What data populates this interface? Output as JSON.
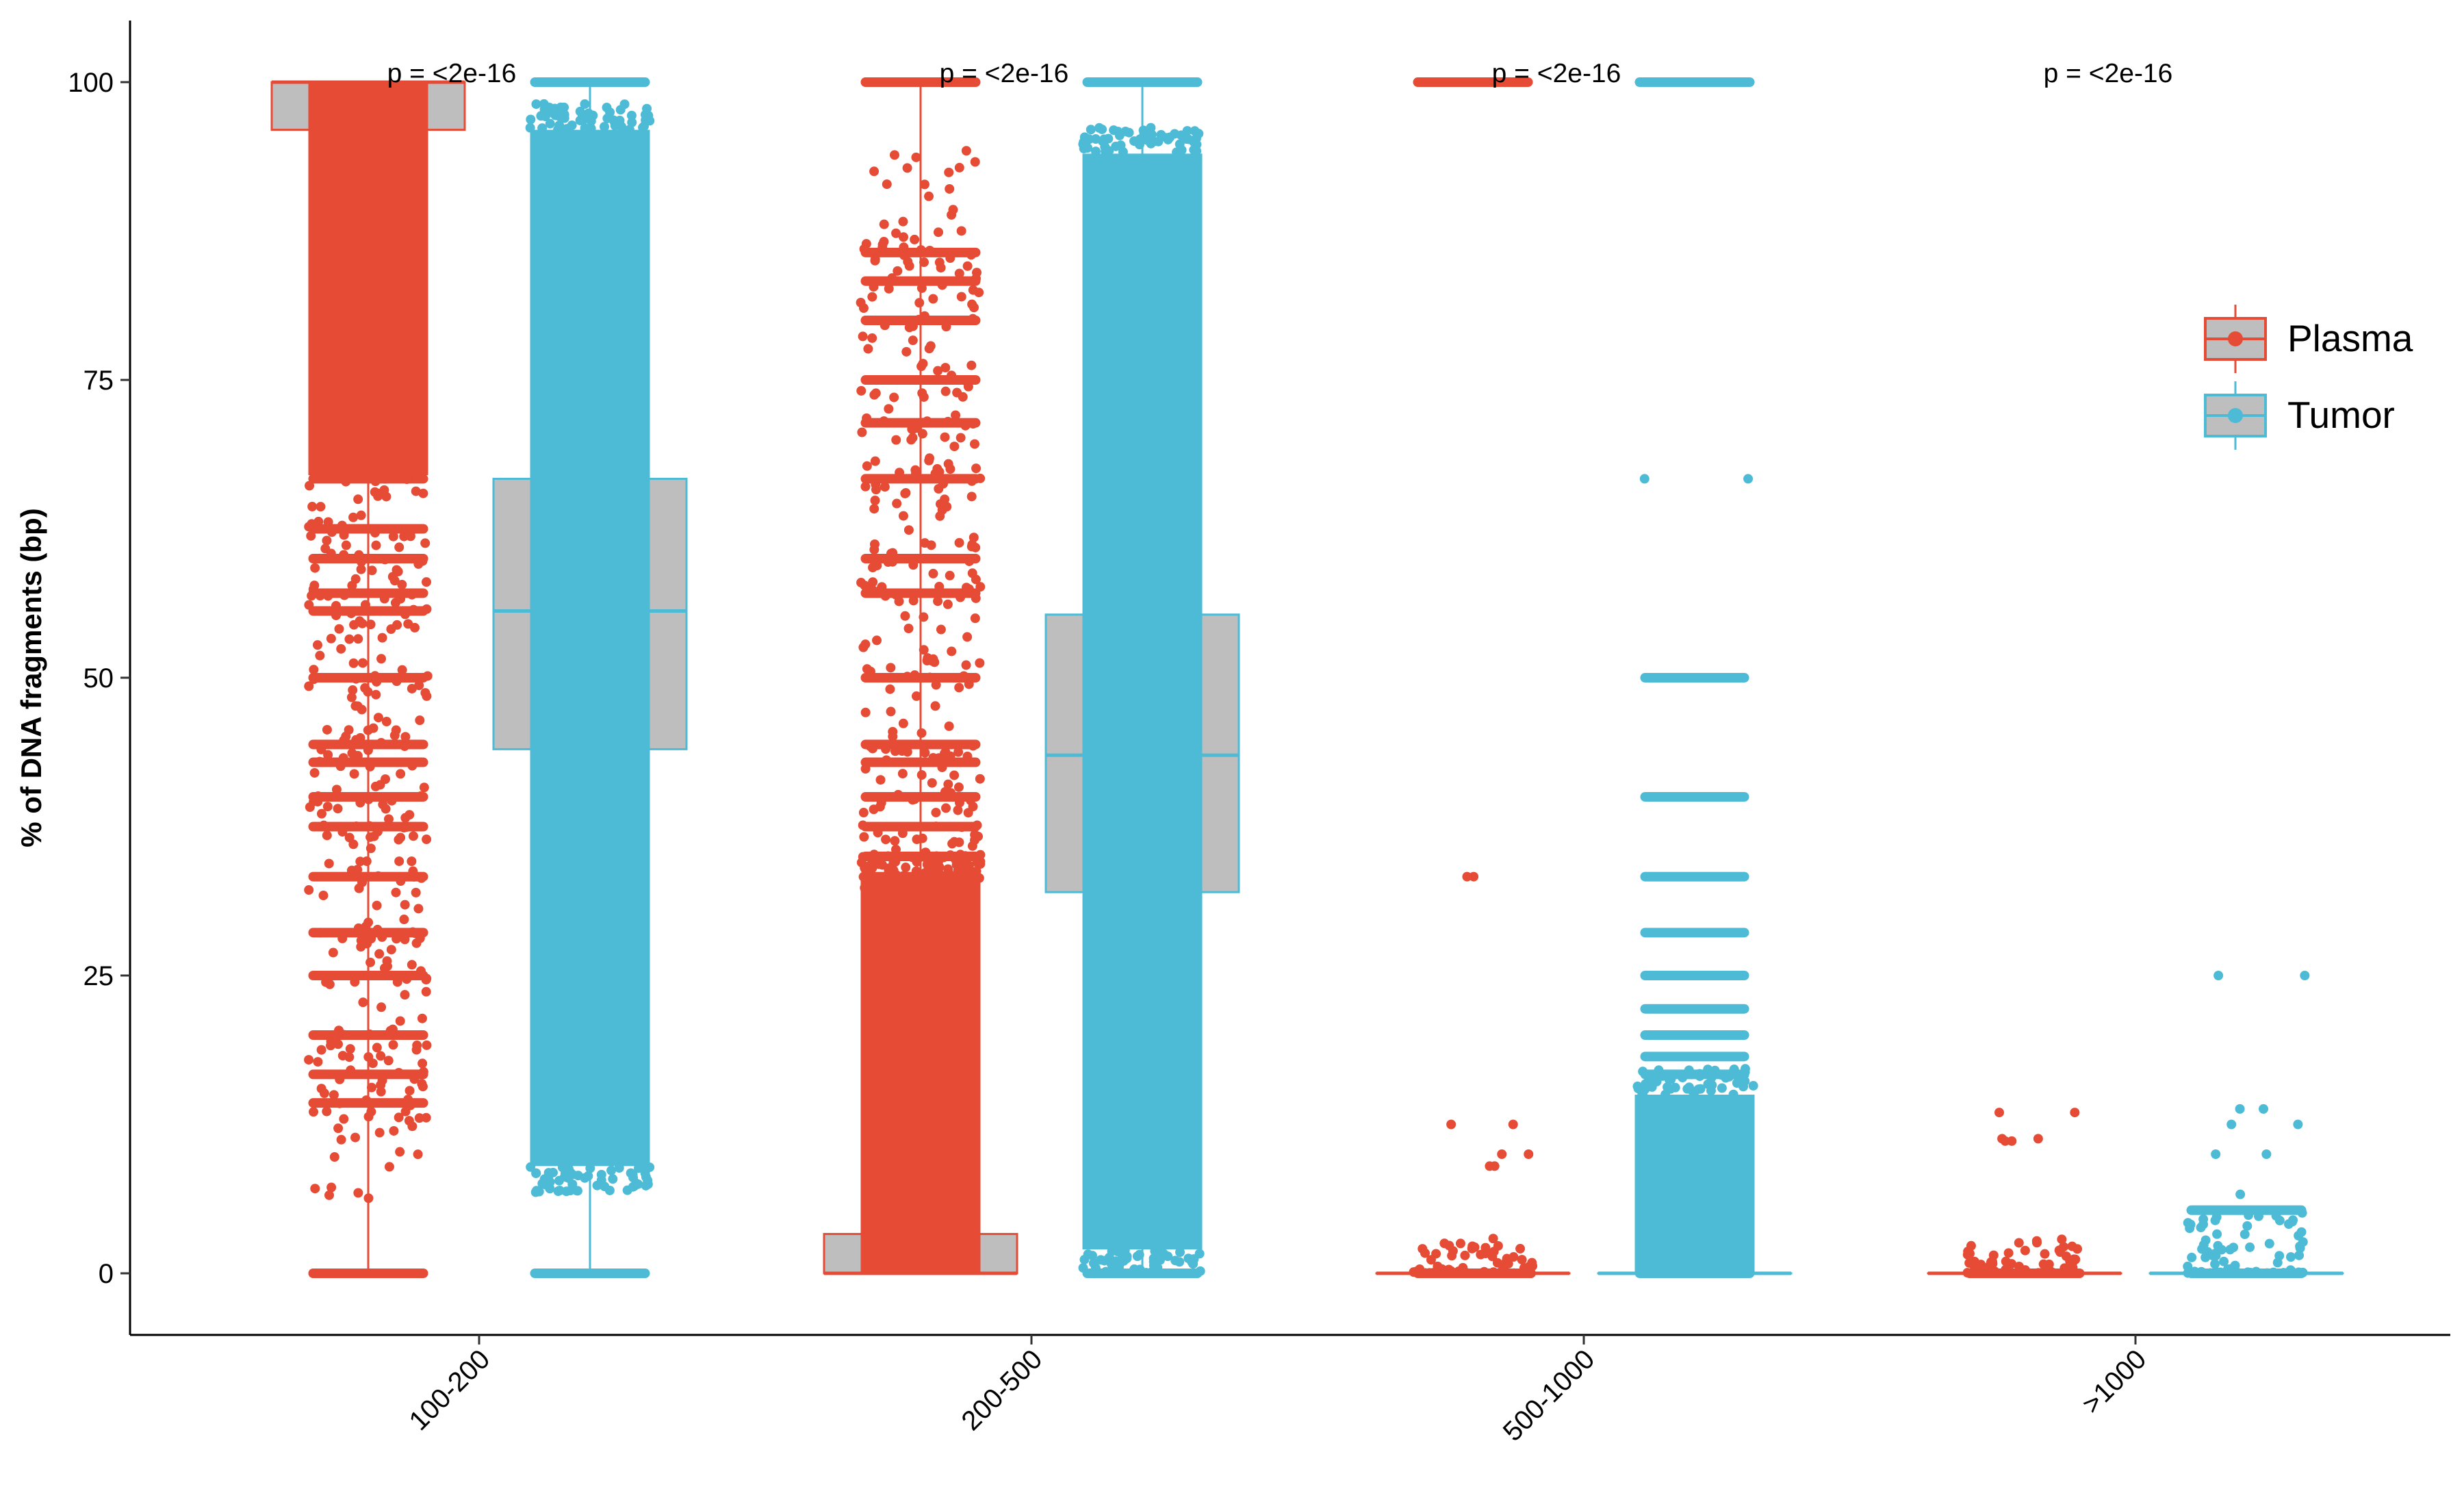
{
  "chart_data": {
    "type": "box",
    "title": "",
    "xlabel": "",
    "ylabel": "% of DNA fragments (bp)",
    "ylim": [
      -5,
      105
    ],
    "yticks": [
      0,
      25,
      50,
      75,
      100
    ],
    "categories": [
      "100-200",
      "200-500",
      "500-1000",
      ">1000"
    ],
    "grid": false,
    "legend_position": "right",
    "fill_color": "#bebebe",
    "series": [
      {
        "name": "Plasma",
        "color": "#e64b35",
        "boxes": [
          {
            "min": 0,
            "q1": 96,
            "median": 100,
            "q3": 100,
            "max": 100,
            "point_range": [
              0,
              100
            ],
            "dense_range": [
              67,
              100
            ],
            "levels": [
              0,
              14.3,
              16.7,
              20,
              25,
              28.6,
              33.3,
              37.5,
              40,
              42.9,
              44.4,
              50,
              55.6,
              57.1,
              60,
              62.5,
              66.7
            ]
          },
          {
            "min": 0,
            "q1": 0,
            "median": 0,
            "q3": 3.3,
            "max": 100,
            "point_range": [
              0,
              100
            ],
            "dense_range": [
              0,
              33
            ],
            "levels": [
              33.3,
              35,
              37.5,
              40,
              42.9,
              44.4,
              50,
              57.1,
              60,
              66.7,
              71.4,
              75,
              80,
              83.3,
              85.7,
              100
            ]
          },
          {
            "min": 0,
            "q1": 0,
            "median": 0,
            "q3": 0,
            "max": 0,
            "point_range": [
              0,
              33.3
            ],
            "dense_range": [
              0,
              2
            ],
            "levels": [
              9,
              10,
              12.5,
              33.3,
              100
            ]
          },
          {
            "min": 0,
            "q1": 0,
            "median": 0,
            "q3": 0,
            "max": 0,
            "point_range": [
              0,
              13.5
            ],
            "dense_range": [
              0,
              2
            ],
            "levels": [
              11.1,
              11.3,
              13.5
            ]
          }
        ]
      },
      {
        "name": "Tumor",
        "color": "#4dbbd5",
        "boxes": [
          {
            "min": 0,
            "q1": 44,
            "median": 55.6,
            "q3": 66.7,
            "max": 100,
            "point_range": [
              0,
              100
            ],
            "dense_range": [
              9,
              96
            ],
            "levels": [
              0,
              100
            ]
          },
          {
            "min": 0,
            "q1": 32,
            "median": 43.5,
            "q3": 55.3,
            "max": 100,
            "point_range": [
              0,
              100
            ],
            "dense_range": [
              2,
              94
            ],
            "levels": [
              0,
              100
            ]
          },
          {
            "min": 0,
            "q1": 0,
            "median": 0,
            "q3": 0,
            "max": 0,
            "point_range": [
              0,
              100
            ],
            "dense_range": [
              0,
              15
            ],
            "levels": [
              16.7,
              18.2,
              20,
              22.2,
              25,
              28.6,
              33.3,
              40,
              50,
              66.7,
              100
            ]
          },
          {
            "min": 0,
            "q1": 0,
            "median": 0,
            "q3": 0,
            "max": 0,
            "point_range": [
              0,
              25
            ],
            "dense_range": [
              0,
              4
            ],
            "levels": [
              5.3,
              10,
              12.5,
              13.8,
              25
            ]
          }
        ]
      }
    ],
    "annotations": [
      {
        "category": "100-200",
        "text": "p = <2e-16"
      },
      {
        "category": "200-500",
        "text": "p = <2e-16"
      },
      {
        "category": "500-1000",
        "text": "p = <2e-16"
      },
      {
        "category": ">1000",
        "text": "p = <2e-16"
      }
    ]
  }
}
